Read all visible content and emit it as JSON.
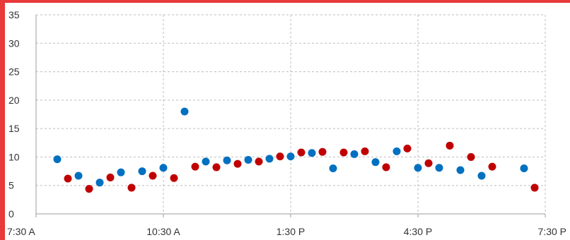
{
  "chart_data": {
    "type": "scatter",
    "title": "",
    "xlabel": "",
    "ylabel": "",
    "ylim": [
      0,
      35
    ],
    "y_ticks": [
      "0",
      "5",
      "10",
      "15",
      "20",
      "25",
      "30",
      "35"
    ],
    "x_ticks": [
      "7:30 A",
      "10:30 A",
      "1:30 P",
      "4:30 P",
      "7:30 P"
    ],
    "grid": true,
    "legend": "none",
    "series": [
      {
        "color": "#0070c0",
        "points": [
          {
            "x": "8:00 A",
            "y": 9.6
          },
          {
            "x": "8:30 A",
            "y": 6.7
          },
          {
            "x": "9:00 A",
            "y": 5.5
          },
          {
            "x": "9:30 A",
            "y": 7.3
          },
          {
            "x": "10:00 A",
            "y": 7.5
          },
          {
            "x": "10:30 A",
            "y": 8.1
          },
          {
            "x": "11:00 A",
            "y": 18.0
          },
          {
            "x": "11:30 A",
            "y": 9.2
          },
          {
            "x": "12:00 P",
            "y": 9.4
          },
          {
            "x": "12:30 P",
            "y": 9.5
          },
          {
            "x": "1:00 P",
            "y": 9.7
          },
          {
            "x": "1:30 P",
            "y": 10.1
          },
          {
            "x": "2:00 P",
            "y": 10.7
          },
          {
            "x": "2:30 P",
            "y": 8.0
          },
          {
            "x": "3:00 P",
            "y": 10.5
          },
          {
            "x": "3:30 P",
            "y": 9.1
          },
          {
            "x": "4:00 P",
            "y": 11.0
          },
          {
            "x": "4:30 P",
            "y": 8.1
          },
          {
            "x": "5:00 P",
            "y": 8.1
          },
          {
            "x": "5:30 P",
            "y": 7.7
          },
          {
            "x": "6:00 P",
            "y": 6.7
          },
          {
            "x": "7:00 P",
            "y": 8.0
          }
        ]
      },
      {
        "color": "#c00000",
        "points": [
          {
            "x": "8:15 A",
            "y": 6.2
          },
          {
            "x": "8:45 A",
            "y": 4.4
          },
          {
            "x": "9:15 A",
            "y": 6.4
          },
          {
            "x": "9:45 A",
            "y": 4.6
          },
          {
            "x": "10:15 A",
            "y": 6.7
          },
          {
            "x": "10:45 A",
            "y": 6.3
          },
          {
            "x": "11:15 A",
            "y": 8.3
          },
          {
            "x": "11:45 A",
            "y": 8.2
          },
          {
            "x": "12:15 P",
            "y": 8.8
          },
          {
            "x": "12:45 P",
            "y": 9.2
          },
          {
            "x": "1:15 P",
            "y": 10.1
          },
          {
            "x": "1:45 P",
            "y": 10.8
          },
          {
            "x": "2:15 P",
            "y": 10.9
          },
          {
            "x": "2:45 P",
            "y": 10.8
          },
          {
            "x": "3:15 P",
            "y": 11.0
          },
          {
            "x": "3:45 P",
            "y": 8.2
          },
          {
            "x": "4:15 P",
            "y": 11.5
          },
          {
            "x": "4:45 P",
            "y": 8.9
          },
          {
            "x": "5:15 P",
            "y": 12.0
          },
          {
            "x": "5:45 P",
            "y": 10.0
          },
          {
            "x": "6:15 P",
            "y": 8.3
          },
          {
            "x": "7:15 P",
            "y": 4.6
          }
        ]
      }
    ]
  }
}
